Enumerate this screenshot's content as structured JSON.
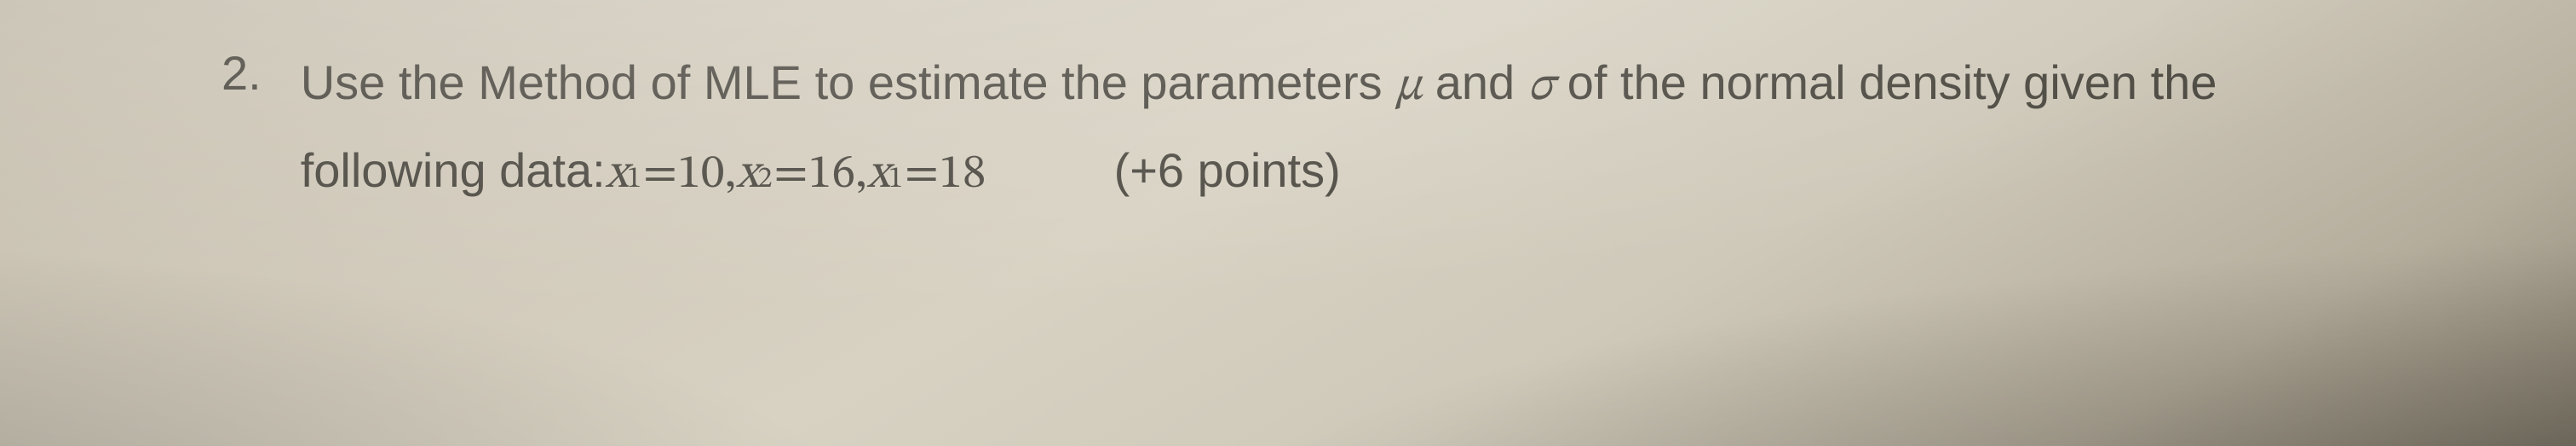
{
  "problem": {
    "number": "2.",
    "line1_a": "Use the Method of MLE to estimate the parameters ",
    "mu": "μ",
    "line1_b": " and ",
    "sigma": "σ",
    "line1_c": " of the normal density given the",
    "line2_a": "following data: ",
    "x": "x",
    "sub1": "1",
    "eq": " = ",
    "v1": "10",
    "comma": ",  ",
    "sub2": "2",
    "v2": "16",
    "sub3": "1",
    "v3": "18",
    "points": "(+6 points)"
  }
}
